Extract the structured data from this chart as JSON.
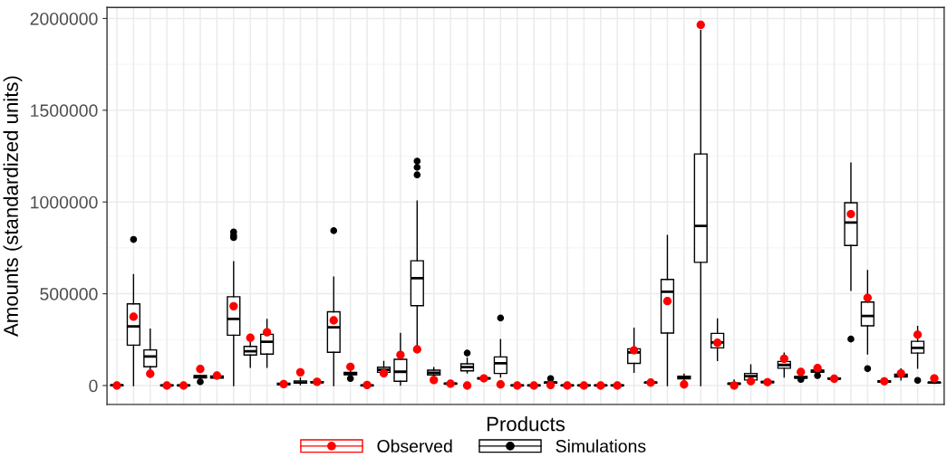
{
  "chart_data": {
    "type": "box",
    "xlabel": "Products",
    "ylabel": "Amounts (standardized units)",
    "categories": [
      null,
      null,
      null,
      null,
      null,
      null,
      null,
      null,
      null,
      null,
      null,
      null,
      null,
      null,
      null,
      null,
      null,
      null,
      null,
      null,
      null,
      null,
      null,
      null,
      null,
      null,
      null,
      null,
      null,
      null,
      null,
      null,
      null,
      null,
      null,
      null,
      null,
      null,
      null,
      null,
      null,
      null,
      null,
      null,
      null,
      null,
      null,
      null,
      null,
      null
    ],
    "ylim": [
      -103000,
      2060000
    ],
    "yticks": [
      0,
      500000,
      1000000,
      1500000,
      2000000
    ],
    "grid": true,
    "legend": "bottom",
    "tick_labels": "y",
    "marker": "circle",
    "series": [
      {
        "name": "Observed",
        "type": "scatter",
        "color": "#ff0000",
        "values": [
          0,
          375000,
          64000,
          0,
          0,
          90000,
          54000,
          432000,
          260000,
          290000,
          8000,
          72000,
          20000,
          355000,
          102000,
          3000,
          67000,
          167000,
          197000,
          30000,
          10000,
          0,
          39000,
          6000,
          0,
          0,
          3000,
          0,
          0,
          0,
          0,
          192000,
          16000,
          460000,
          6000,
          1965000,
          233000,
          0,
          23000,
          18000,
          146000,
          74000,
          95000,
          37000,
          934000,
          478000,
          23000,
          66000,
          277000,
          39000
        ]
      },
      {
        "name": "Simulations",
        "color": "#000000",
        "boxes": [
          {
            "low": 0,
            "q1": 0,
            "median": 2000,
            "q3": 3000,
            "high": 5000
          },
          {
            "low": 0,
            "q1": 220000,
            "median": 322000,
            "q3": 445000,
            "high": 604000,
            "outliers": [
              796000
            ]
          },
          {
            "low": 46000,
            "q1": 102000,
            "median": 158000,
            "q3": 194000,
            "high": 307000
          },
          {
            "low": 0,
            "q1": 0,
            "median": 1000,
            "q3": 2000,
            "high": 4000
          },
          {
            "low": 0,
            "q1": 0,
            "median": 1000,
            "q3": 2000,
            "high": 4000
          },
          {
            "low": 41000,
            "q1": 41000,
            "median": 49000,
            "q3": 54000,
            "high": 54000,
            "outliers": [
              20000
            ]
          },
          {
            "low": 40000,
            "q1": 40000,
            "median": 46000,
            "q3": 52000,
            "high": 58000
          },
          {
            "low": 0,
            "q1": 274000,
            "median": 363000,
            "q3": 484000,
            "high": 675000,
            "outliers": [
              806000,
              819000,
              837000
            ]
          },
          {
            "low": 100000,
            "q1": 166000,
            "median": 187000,
            "q3": 213000,
            "high": 235000
          },
          {
            "low": 100000,
            "q1": 171000,
            "median": 238000,
            "q3": 279000,
            "high": 360000
          },
          {
            "low": 3000,
            "q1": 5000,
            "median": 8000,
            "q3": 12000,
            "high": 15000
          },
          {
            "low": 5000,
            "q1": 13000,
            "median": 17000,
            "q3": 25000,
            "high": 41000
          },
          {
            "low": 12000,
            "q1": 15000,
            "median": 18000,
            "q3": 21000,
            "high": 25000
          },
          {
            "low": 0,
            "q1": 181000,
            "median": 317000,
            "q3": 402000,
            "high": 591000,
            "outliers": [
              844000
            ]
          },
          {
            "low": 50000,
            "q1": 59000,
            "median": 64000,
            "q3": 72000,
            "high": 85000,
            "outliers": [
              38000
            ]
          },
          {
            "low": 0,
            "q1": 0,
            "median": 1000,
            "q3": 3000,
            "high": 5000
          },
          {
            "low": 65000,
            "q1": 72000,
            "median": 85000,
            "q3": 100000,
            "high": 131000
          },
          {
            "low": 2000,
            "q1": 23000,
            "median": 75000,
            "q3": 143000,
            "high": 284000
          },
          {
            "low": 200000,
            "q1": 435000,
            "median": 585000,
            "q3": 680000,
            "high": 1005000,
            "outliers": [
              1148000,
              1189000,
              1223000
            ]
          },
          {
            "low": 50000,
            "q1": 58000,
            "median": 70000,
            "q3": 84000,
            "high": 97000
          },
          {
            "low": 5000,
            "q1": 8000,
            "median": 10000,
            "q3": 12000,
            "high": 15000
          },
          {
            "low": 69000,
            "q1": 80000,
            "median": 100000,
            "q3": 118000,
            "high": 149000,
            "outliers": [
              177000
            ]
          },
          {
            "low": 33000,
            "q1": 36000,
            "median": 39000,
            "q3": 42000,
            "high": 46000
          },
          {
            "low": 46000,
            "q1": 66000,
            "median": 121000,
            "q3": 156000,
            "high": 250000,
            "outliers": [
              368000
            ]
          },
          {
            "low": 0,
            "q1": 0,
            "median": 1000,
            "q3": 2000,
            "high": 4000
          },
          {
            "low": 0,
            "q1": 0,
            "median": 1000,
            "q3": 2000,
            "high": 4000
          },
          {
            "low": 10000,
            "q1": 13000,
            "median": 16000,
            "q3": 19000,
            "high": 22000,
            "outliers": [
              38000
            ]
          },
          {
            "low": 0,
            "q1": 0,
            "median": 1000,
            "q3": 2000,
            "high": 4000
          },
          {
            "low": 0,
            "q1": 0,
            "median": 1000,
            "q3": 2000,
            "high": 4000
          },
          {
            "low": 0,
            "q1": 0,
            "median": 1000,
            "q3": 2000,
            "high": 4000
          },
          {
            "low": 0,
            "q1": 0,
            "median": 1000,
            "q3": 2000,
            "high": 4000
          },
          {
            "low": 72000,
            "q1": 121000,
            "median": 181000,
            "q3": 200000,
            "high": 312000
          },
          {
            "low": 12000,
            "q1": 14000,
            "median": 16000,
            "q3": 18000,
            "high": 20000
          },
          {
            "low": 0,
            "q1": 286000,
            "median": 511000,
            "q3": 578000,
            "high": 818000
          },
          {
            "low": 30000,
            "q1": 36000,
            "median": 43000,
            "q3": 51000,
            "high": 62000
          },
          {
            "low": 0,
            "q1": 671000,
            "median": 870000,
            "q3": 1262000,
            "high": 1934000
          },
          {
            "low": 136000,
            "q1": 205000,
            "median": 235000,
            "q3": 284000,
            "high": 363000
          },
          {
            "low": 0,
            "q1": 7000,
            "median": 10000,
            "q3": 13000,
            "high": 30000
          },
          {
            "low": 25000,
            "q1": 30000,
            "median": 51000,
            "q3": 66000,
            "high": 112000
          },
          {
            "low": 12000,
            "q1": 16000,
            "median": 19000,
            "q3": 22000,
            "high": 25000
          },
          {
            "low": 46000,
            "q1": 94000,
            "median": 112000,
            "q3": 131000,
            "high": 177000
          },
          {
            "low": 38000,
            "q1": 40000,
            "median": 44000,
            "q3": 49000,
            "high": 62000,
            "outliers": [
              33000
            ]
          },
          {
            "low": 65000,
            "q1": 72000,
            "median": 79000,
            "q3": 84000,
            "high": 88000,
            "outliers": [
              54000
            ]
          },
          {
            "low": 33000,
            "q1": 35000,
            "median": 38000,
            "q3": 41000,
            "high": 44000
          },
          {
            "low": 519000,
            "q1": 763000,
            "median": 888000,
            "q3": 996000,
            "high": 1212000,
            "outliers": [
              253000
            ]
          },
          {
            "low": 172000,
            "q1": 325000,
            "median": 379000,
            "q3": 455000,
            "high": 626000,
            "outliers": [
              92000
            ]
          },
          {
            "low": 15000,
            "q1": 18000,
            "median": 21000,
            "q3": 26000,
            "high": 30000
          },
          {
            "low": 30000,
            "q1": 46000,
            "median": 54000,
            "q3": 62000,
            "high": 90000
          },
          {
            "low": 95000,
            "q1": 177000,
            "median": 205000,
            "q3": 241000,
            "high": 322000,
            "outliers": [
              28000
            ]
          },
          {
            "low": 12000,
            "q1": 14000,
            "median": 16000,
            "q3": 18000,
            "high": 20000
          }
        ]
      }
    ]
  }
}
